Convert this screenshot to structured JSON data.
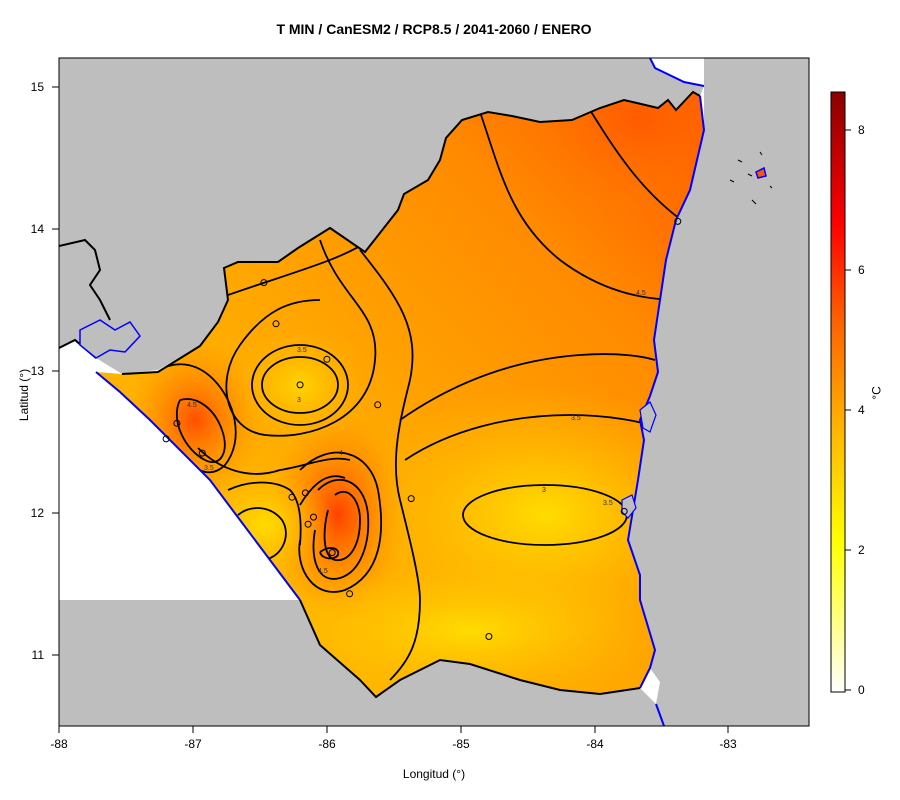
{
  "title": "T MIN / CanESM2 / RCP8.5 / 2041-2060 / ENERO",
  "xlabel": "Longitud (°)",
  "ylabel": "Latitud (°)",
  "colorbar": {
    "unit": "°C",
    "ticks": [
      "0",
      "2",
      "4",
      "6",
      "8"
    ]
  },
  "map": {
    "x_ticks": [
      "-88",
      "-87",
      "-86",
      "-85",
      "-84",
      "-83"
    ],
    "y_ticks": [
      "11",
      "12",
      "13",
      "14",
      "15"
    ],
    "contour_labels": [
      "3.5",
      "3",
      "4.5",
      "4",
      "3.5",
      "3",
      "4.5",
      "4.5",
      "3.5",
      "3.5"
    ],
    "colors": {
      "land_outside": "#bebebe",
      "coast": "#0000ff",
      "border": "#000000",
      "low": "#ffd800",
      "high": "#ff4500"
    }
  },
  "chart_data": {
    "type": "heatmap",
    "title": "T MIN / CanESM2 / RCP8.5 / 2041-2060 / ENERO",
    "xlabel": "Longitud (°)",
    "ylabel": "Latitud (°)",
    "xlim": [
      -88,
      -82.4
    ],
    "ylim": [
      10.5,
      15.2
    ],
    "colorbar_range": [
      0,
      8.6
    ],
    "colorbar_unit": "°C",
    "contour_levels": [
      3,
      3.5,
      4,
      4.5
    ],
    "stations": [
      {
        "lon": -86.47,
        "lat": 13.62
      },
      {
        "lon": -86.38,
        "lat": 13.33
      },
      {
        "lon": -86.0,
        "lat": 13.08
      },
      {
        "lon": -86.2,
        "lat": 12.9
      },
      {
        "lon": -85.62,
        "lat": 12.76
      },
      {
        "lon": -87.12,
        "lat": 12.63
      },
      {
        "lon": -87.2,
        "lat": 12.52
      },
      {
        "lon": -86.93,
        "lat": 12.42
      },
      {
        "lon": -86.26,
        "lat": 12.11
      },
      {
        "lon": -86.16,
        "lat": 12.14
      },
      {
        "lon": -85.37,
        "lat": 12.1
      },
      {
        "lon": -86.1,
        "lat": 11.97
      },
      {
        "lon": -86.14,
        "lat": 11.92
      },
      {
        "lon": -85.96,
        "lat": 11.72
      },
      {
        "lon": -85.83,
        "lat": 11.43
      },
      {
        "lon": -84.79,
        "lat": 11.13
      },
      {
        "lon": -83.78,
        "lat": 12.01
      },
      {
        "lon": -83.38,
        "lat": 14.05
      }
    ]
  }
}
